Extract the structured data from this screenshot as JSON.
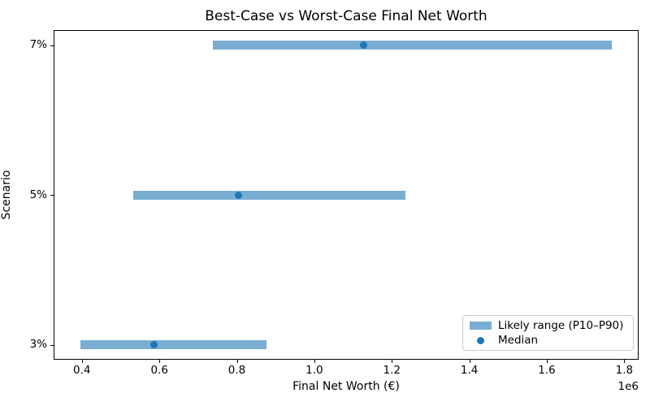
{
  "chart_data": {
    "type": "bar",
    "subtype": "horizontal-range-bar-with-median-markers",
    "title": "Best-Case vs Worst-Case Final Net Worth",
    "xlabel": "Final Net Worth (€)",
    "ylabel": "Scenario",
    "x_offset_label": "1e6",
    "categories": [
      "3%",
      "5%",
      "7%"
    ],
    "series": [
      {
        "name": "P10",
        "values": [
          396000,
          533000,
          738000
        ]
      },
      {
        "name": "Median",
        "values": [
          585000,
          803000,
          1128000
        ]
      },
      {
        "name": "P90",
        "values": [
          876000,
          1236000,
          1768000
        ]
      }
    ],
    "xlim": [
      327000,
      1837000
    ],
    "ylim": [
      -0.1,
      2.1
    ],
    "xticks": [
      400000,
      600000,
      800000,
      1000000,
      1200000,
      1400000,
      1600000,
      1800000
    ],
    "xtick_labels": [
      "0.4",
      "0.6",
      "0.8",
      "1.0",
      "1.2",
      "1.4",
      "1.6",
      "1.8"
    ],
    "grid": false,
    "legend": {
      "position": "lower right",
      "items": [
        {
          "label": "Likely range (P10–P90)",
          "marker": "patch",
          "color": "#79ADD2"
        },
        {
          "label": "Median",
          "marker": "dot",
          "color": "#1F77B4"
        }
      ]
    },
    "colors": {
      "bar": "#79ADD2",
      "median_dot": "#1F77B4",
      "spine": "#000000",
      "text": "#000000"
    }
  }
}
